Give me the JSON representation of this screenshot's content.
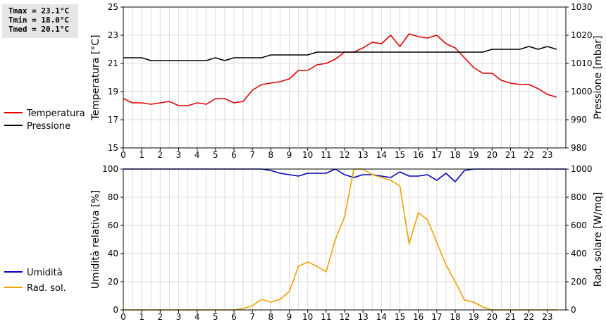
{
  "stats": {
    "tmax": "Tmax = 23.1°C",
    "tmin": "Tmin = 18.0°C",
    "tmed": "Tmed = 20.1°C"
  },
  "legend_top": [
    {
      "label": "Temperatura",
      "color": "#e00000"
    },
    {
      "label": "Pressione",
      "color": "#000000"
    }
  ],
  "legend_bottom": [
    {
      "label": "Umidità",
      "color": "#0000c0"
    },
    {
      "label": "Rad. sol.",
      "color": "#f0a000"
    }
  ],
  "chart_data": [
    {
      "type": "line",
      "grid": true,
      "xlabel": "",
      "xlim": [
        0,
        24
      ],
      "x_ticks": [
        0,
        1,
        2,
        3,
        4,
        5,
        6,
        7,
        8,
        9,
        10,
        11,
        12,
        13,
        14,
        15,
        16,
        17,
        18,
        19,
        20,
        21,
        22,
        23
      ],
      "y_left": {
        "label": "Temperatura [°C]",
        "lim": [
          15,
          25
        ],
        "ticks": [
          15,
          17,
          19,
          21,
          23,
          25
        ]
      },
      "y_right": {
        "label": "Pressione [mbar]",
        "lim": [
          980,
          1030
        ],
        "ticks": [
          980,
          990,
          1000,
          1010,
          1020,
          1030
        ]
      },
      "series": [
        {
          "name": "Temperatura",
          "axis": "left",
          "color": "#e00000",
          "x": [
            0,
            0.5,
            1,
            1.5,
            2,
            2.5,
            3,
            3.5,
            4,
            4.5,
            5,
            5.5,
            6,
            6.5,
            7,
            7.5,
            8,
            8.5,
            9,
            9.5,
            10,
            10.5,
            11,
            11.5,
            12,
            12.5,
            13,
            13.5,
            14,
            14.5,
            15,
            15.5,
            16,
            16.5,
            17,
            17.5,
            18,
            18.5,
            19,
            19.5,
            20,
            20.5,
            21,
            21.5,
            22,
            22.5,
            23,
            23.5
          ],
          "y": [
            18.5,
            18.2,
            18.2,
            18.1,
            18.2,
            18.3,
            18.0,
            18.0,
            18.2,
            18.1,
            18.5,
            18.5,
            18.2,
            18.3,
            19.1,
            19.5,
            19.6,
            19.7,
            19.9,
            20.5,
            20.5,
            20.9,
            21.0,
            21.3,
            21.8,
            21.8,
            22.1,
            22.5,
            22.4,
            23.0,
            22.2,
            23.1,
            22.9,
            22.8,
            23.0,
            22.4,
            22.1,
            21.4,
            20.7,
            20.3,
            20.3,
            19.8,
            19.6,
            19.5,
            19.5,
            19.2,
            18.8,
            18.6
          ]
        },
        {
          "name": "Pressione",
          "axis": "right",
          "color": "#000000",
          "x": [
            0,
            0.5,
            1,
            1.5,
            2,
            2.5,
            3,
            3.5,
            4,
            4.5,
            5,
            5.5,
            6,
            6.5,
            7,
            7.5,
            8,
            8.5,
            9,
            9.5,
            10,
            10.5,
            11,
            11.5,
            12,
            12.5,
            13,
            13.5,
            14,
            14.5,
            15,
            15.5,
            16,
            16.5,
            17,
            17.5,
            18,
            18.5,
            19,
            19.5,
            20,
            20.5,
            21,
            21.5,
            22,
            22.5,
            23,
            23.5
          ],
          "y": [
            1012,
            1012,
            1012,
            1011,
            1011,
            1011,
            1011,
            1011,
            1011,
            1011,
            1012,
            1011,
            1012,
            1012,
            1012,
            1012,
            1013,
            1013,
            1013,
            1013,
            1013,
            1014,
            1014,
            1014,
            1014,
            1014,
            1014,
            1014,
            1014,
            1014,
            1014,
            1014,
            1014,
            1014,
            1014,
            1014,
            1014,
            1014,
            1014,
            1014,
            1015,
            1015,
            1015,
            1015,
            1016,
            1015,
            1016,
            1015
          ]
        }
      ]
    },
    {
      "type": "line",
      "grid": true,
      "xlabel": "",
      "xlim": [
        0,
        24
      ],
      "x_ticks": [
        0,
        1,
        2,
        3,
        4,
        5,
        6,
        7,
        8,
        9,
        10,
        11,
        12,
        13,
        14,
        15,
        16,
        17,
        18,
        19,
        20,
        21,
        22,
        23
      ],
      "y_left": {
        "label": "Umidità relativa [%]",
        "lim": [
          0,
          100
        ],
        "ticks": [
          0,
          20,
          40,
          60,
          80,
          100
        ]
      },
      "y_right": {
        "label": "Rad. solare [W/mq]",
        "lim": [
          0,
          1000
        ],
        "ticks": [
          0,
          200,
          400,
          600,
          800,
          1000
        ]
      },
      "series": [
        {
          "name": "Umidità",
          "axis": "left",
          "color": "#0000c0",
          "x": [
            0,
            7.5,
            8,
            8.5,
            9,
            9.5,
            10,
            10.5,
            11,
            11.5,
            12,
            12.5,
            13,
            13.5,
            14,
            14.5,
            15,
            15.5,
            16,
            16.5,
            17,
            17.5,
            18,
            18.5,
            19,
            24
          ],
          "y": [
            100,
            100,
            99,
            97,
            96,
            95,
            97,
            97,
            97,
            100,
            96,
            94,
            96,
            96,
            95,
            94,
            98,
            95,
            95,
            96,
            92,
            97,
            91,
            99,
            100,
            100
          ]
        },
        {
          "name": "Rad. sol.",
          "axis": "right",
          "color": "#f0a000",
          "x": [
            0,
            6,
            6.5,
            7,
            7.5,
            8,
            8.5,
            9,
            9.5,
            10,
            10.5,
            11,
            11.5,
            12,
            12.5,
            13,
            13.5,
            14,
            14.5,
            15,
            15.5,
            16,
            16.5,
            17,
            17.5,
            18,
            18.5,
            19,
            19.5,
            20,
            23.5
          ],
          "y": [
            0,
            0,
            10,
            30,
            75,
            55,
            75,
            130,
            310,
            340,
            310,
            270,
            500,
            660,
            1000,
            1000,
            960,
            940,
            920,
            880,
            470,
            690,
            640,
            480,
            320,
            200,
            70,
            55,
            20,
            0,
            0
          ]
        }
      ]
    }
  ]
}
